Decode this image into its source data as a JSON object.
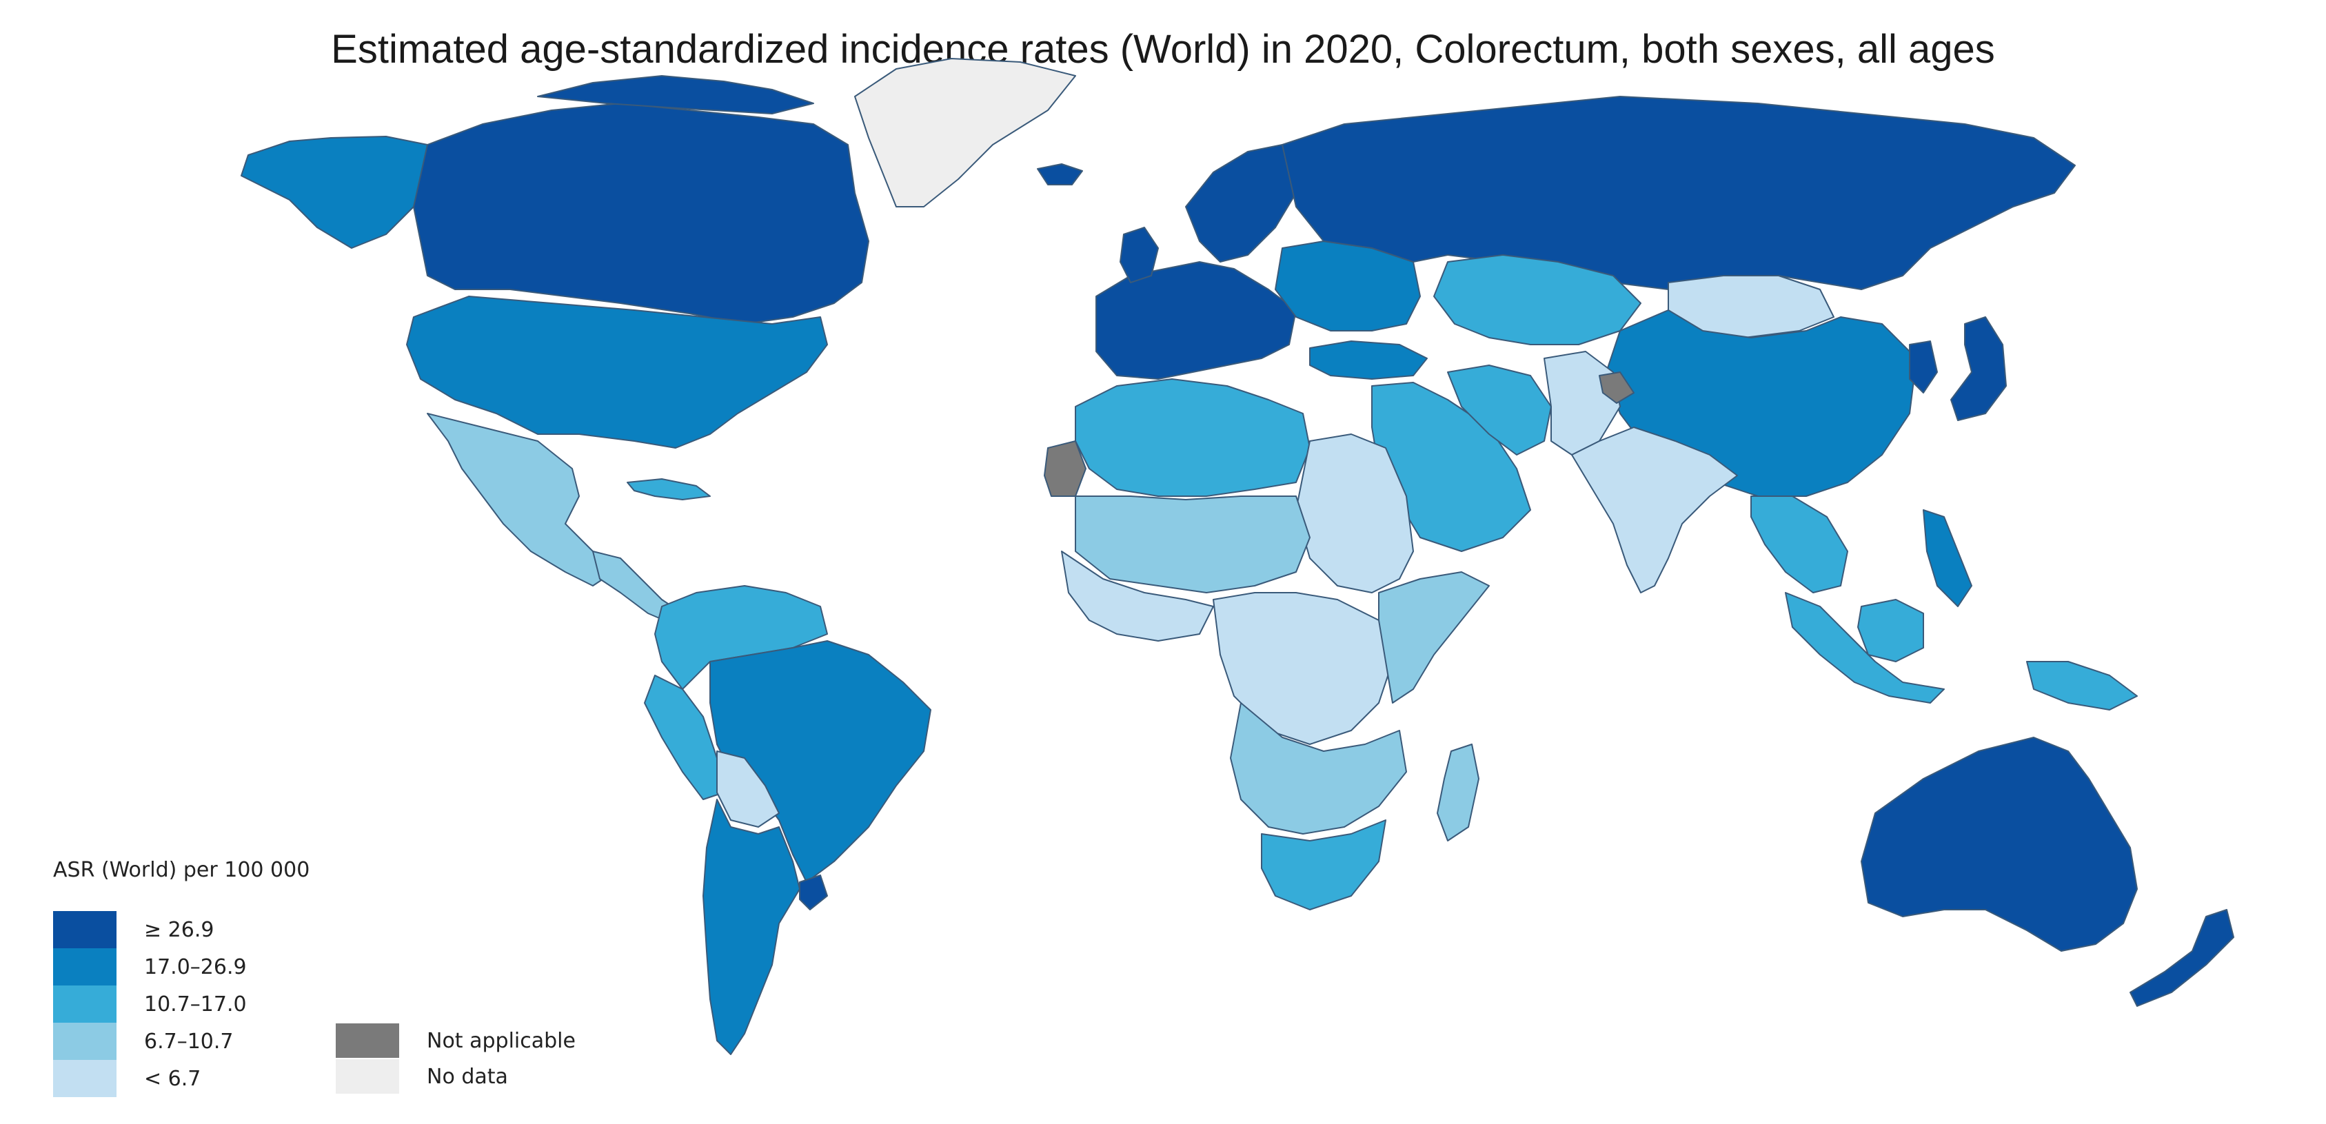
{
  "title": "Estimated age-standardized incidence rates (World) in 2020, Colorectum, both sexes, all ages",
  "legend": {
    "title": "ASR (World) per 100 000",
    "bins": [
      {
        "label": "≥ 26.9",
        "color": "#0a4fa0"
      },
      {
        "label": "17.0–26.9",
        "color": "#0a80c0"
      },
      {
        "label": "10.7–17.0",
        "color": "#36acd8"
      },
      {
        "label": "6.7–10.7",
        "color": "#8ccbe4"
      },
      {
        "label": "< 6.7",
        "color": "#c2dff2"
      }
    ],
    "extra": [
      {
        "label": "Not applicable",
        "color": "#7a7a7a"
      },
      {
        "label": "No data",
        "color": "#eeeeee"
      }
    ]
  },
  "map_regions": [
    {
      "region": "canada",
      "bin": 0
    },
    {
      "region": "alaska",
      "bin": 1
    },
    {
      "region": "usa",
      "bin": 1
    },
    {
      "region": "mexico",
      "bin": 3
    },
    {
      "region": "central-america",
      "bin": 3
    },
    {
      "region": "caribbean",
      "bin": 2
    },
    {
      "region": "colombia-venezuela",
      "bin": 2
    },
    {
      "region": "brazil",
      "bin": 1
    },
    {
      "region": "peru",
      "bin": 2
    },
    {
      "region": "bolivia",
      "bin": 4
    },
    {
      "region": "argentina-chile",
      "bin": 1
    },
    {
      "region": "uruguay",
      "bin": 0
    },
    {
      "region": "greenland",
      "bin": -1
    },
    {
      "region": "iceland",
      "bin": 0
    },
    {
      "region": "western-europe",
      "bin": 0
    },
    {
      "region": "scandinavia",
      "bin": 0
    },
    {
      "region": "eastern-europe",
      "bin": 1
    },
    {
      "region": "russia",
      "bin": 0
    },
    {
      "region": "kazakhstan",
      "bin": 2
    },
    {
      "region": "mongolia",
      "bin": 4
    },
    {
      "region": "china",
      "bin": 1
    },
    {
      "region": "japan",
      "bin": 0
    },
    {
      "region": "korea",
      "bin": 0
    },
    {
      "region": "turkey",
      "bin": 1
    },
    {
      "region": "middle-east",
      "bin": 2
    },
    {
      "region": "iran",
      "bin": 2
    },
    {
      "region": "afghanistan-pakistan",
      "bin": 4
    },
    {
      "region": "kashmir",
      "bin": -2
    },
    {
      "region": "india",
      "bin": 4
    },
    {
      "region": "southeast-asia",
      "bin": 2
    },
    {
      "region": "indonesia",
      "bin": 2
    },
    {
      "region": "philippines",
      "bin": 1
    },
    {
      "region": "new-guinea",
      "bin": 2
    },
    {
      "region": "australia",
      "bin": 0
    },
    {
      "region": "new-zealand",
      "bin": 0
    },
    {
      "region": "north-africa",
      "bin": 2
    },
    {
      "region": "western-sahara",
      "bin": -2
    },
    {
      "region": "egypt-sudan",
      "bin": 4
    },
    {
      "region": "sahel",
      "bin": 3
    },
    {
      "region": "west-africa",
      "bin": 4
    },
    {
      "region": "central-africa",
      "bin": 4
    },
    {
      "region": "east-africa",
      "bin": 3
    },
    {
      "region": "southern-africa",
      "bin": 3
    },
    {
      "region": "south-africa",
      "bin": 2
    },
    {
      "region": "madagascar",
      "bin": 3
    }
  ]
}
